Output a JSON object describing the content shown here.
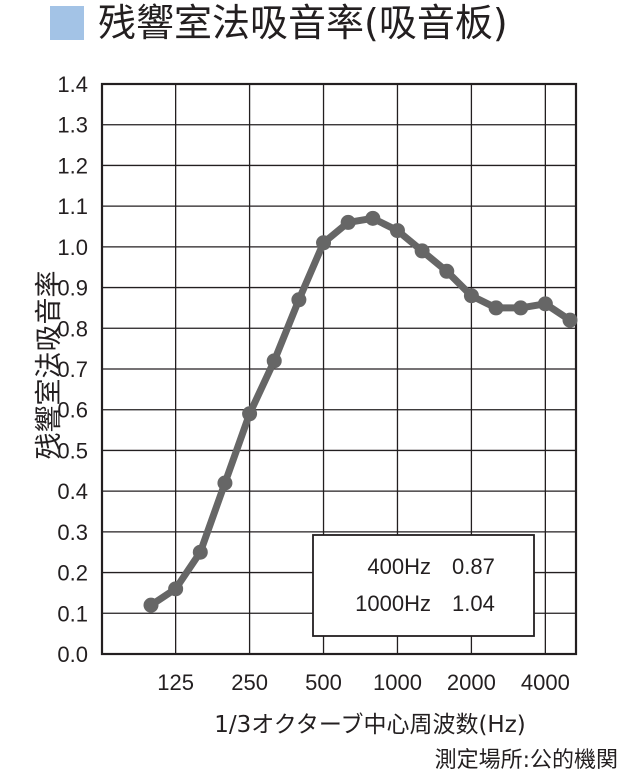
{
  "chart_data": {
    "type": "line",
    "title": "残響室法吸音率(吸音板)",
    "xlabel": "1/3オクターブ中心周波数(Hz)",
    "ylabel": "残響室法吸音率",
    "ylim": [
      0.0,
      1.4
    ],
    "yticks": [
      "0.0",
      "0.1",
      "0.2",
      "0.3",
      "0.4",
      "0.5",
      "0.6",
      "0.7",
      "0.8",
      "0.9",
      "1.0",
      "1.1",
      "1.2",
      "1.3",
      "1.4"
    ],
    "x_tick_labels": [
      "125",
      "250",
      "500",
      "1000",
      "2000",
      "4000"
    ],
    "grid": true,
    "series": [
      {
        "x": [
          100,
          125,
          160,
          200,
          250,
          315,
          400,
          500,
          630,
          800,
          1000,
          1250,
          1600,
          2000,
          2500,
          3150,
          4000,
          5000
        ],
        "values": [
          0.12,
          0.16,
          0.25,
          0.42,
          0.59,
          0.72,
          0.87,
          1.01,
          1.06,
          1.07,
          1.04,
          0.99,
          0.94,
          0.88,
          0.85,
          0.85,
          0.86,
          0.82
        ]
      }
    ],
    "annotation": {
      "rows": [
        {
          "freq": "400Hz",
          "value": "0.87"
        },
        {
          "freq": "1000Hz",
          "value": "1.04"
        }
      ]
    },
    "note": "測定場所:公的機関",
    "colors": {
      "line": "#666666",
      "title_marker": "#a3c3e6",
      "grid": "#231f20"
    }
  }
}
